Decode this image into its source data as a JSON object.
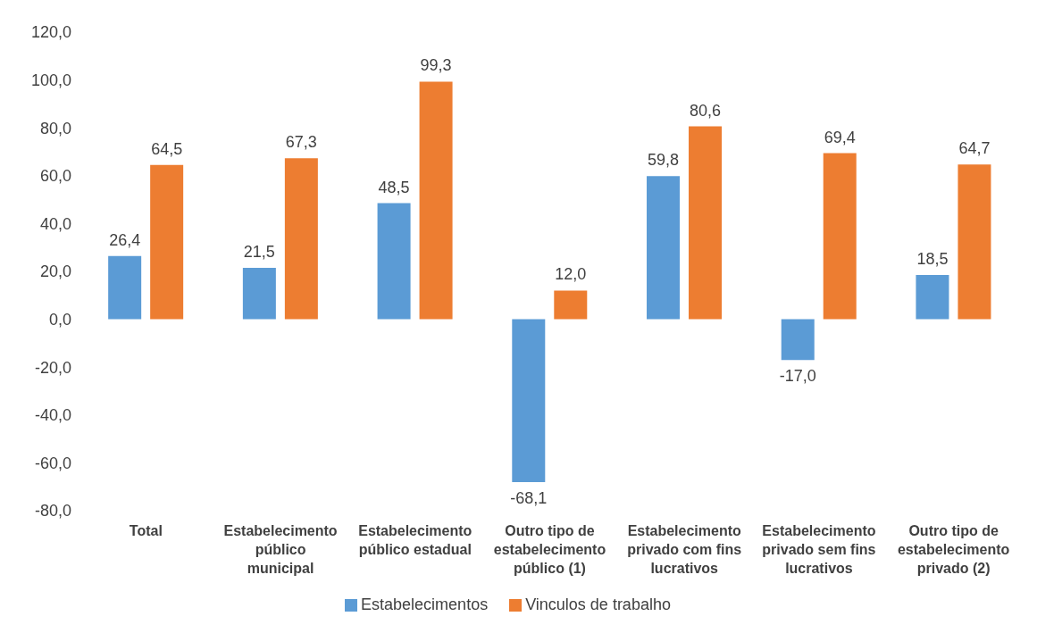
{
  "chart_data": {
    "type": "bar",
    "categories": [
      "Total",
      "Estabelecimento público municipal",
      "Estabelecimento público estadual",
      "Outro tipo de estabelecimento público (1)",
      "Estabelecimento privado com fins lucrativos",
      "Estabelecimento privado sem fins lucrativos",
      "Outro tipo de estabelecimento privado (2)"
    ],
    "series": [
      {
        "name": "Estabelecimentos",
        "color": "#5b9bd5",
        "values": [
          26.4,
          21.5,
          48.5,
          -68.1,
          59.8,
          -17.0,
          18.5
        ],
        "value_labels": [
          "26,4",
          "21,5",
          "48,5",
          "-68,1",
          "59,8",
          "-17,0",
          "18,5"
        ]
      },
      {
        "name": "Vinculos de trabalho",
        "color": "#ed7d31",
        "values": [
          64.5,
          67.3,
          99.3,
          12.0,
          80.6,
          69.4,
          64.7
        ],
        "value_labels": [
          "64,5",
          "67,3",
          "99,3",
          "12,0",
          "80,6",
          "69,4",
          "64,7"
        ]
      }
    ],
    "ylim": [
      -80,
      120
    ],
    "yticks": [
      {
        "value": -80,
        "label": "-80,0"
      },
      {
        "value": -60,
        "label": "-60,0"
      },
      {
        "value": -40,
        "label": "-40,0"
      },
      {
        "value": -20,
        "label": "-20,0"
      },
      {
        "value": 0,
        "label": "0,0"
      },
      {
        "value": 20,
        "label": "20,0"
      },
      {
        "value": 40,
        "label": "40,0"
      },
      {
        "value": 60,
        "label": "60,0"
      },
      {
        "value": 80,
        "label": "80,0"
      },
      {
        "value": 100,
        "label": "100,0"
      },
      {
        "value": 120,
        "label": "120,0"
      }
    ],
    "grid": false,
    "legend": "bottom"
  }
}
